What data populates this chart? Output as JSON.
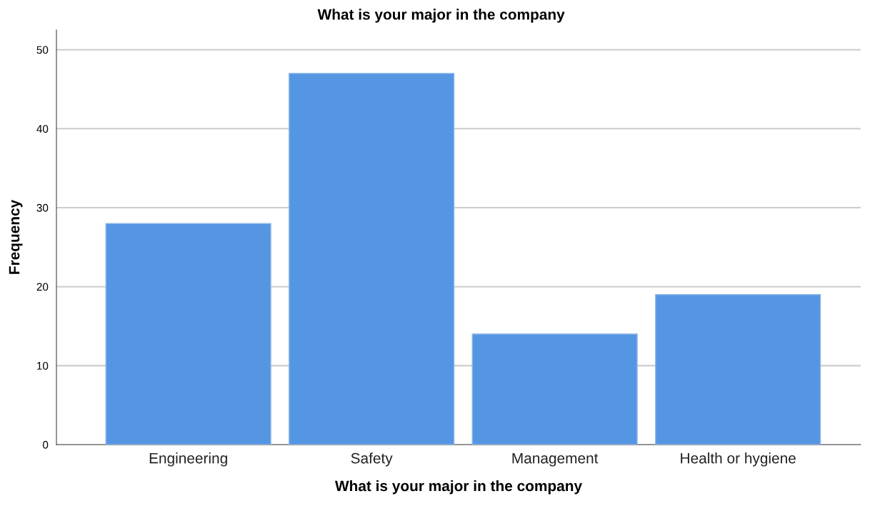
{
  "chart_data": {
    "type": "bar",
    "title": "What is your major in the company",
    "xlabel": "What is your major in the company",
    "ylabel": "Frequency",
    "categories": [
      "Engineering",
      "Safety",
      "Management",
      "Health or hygiene"
    ],
    "values": [
      28,
      47,
      14,
      19
    ],
    "color": "#5596e3",
    "ylim": [
      0,
      52.5
    ],
    "yticks": [
      0,
      10,
      20,
      30,
      40,
      50
    ],
    "grid": "y"
  }
}
